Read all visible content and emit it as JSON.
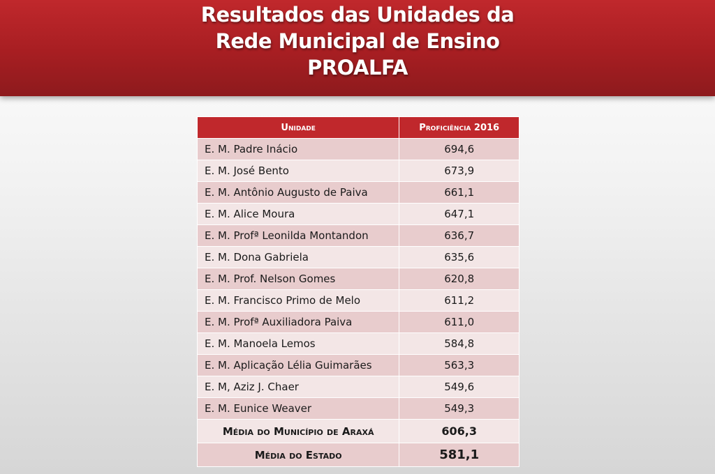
{
  "header": {
    "title_line1": "Resultados das Unidades da",
    "title_line2": "Rede Municipal de Ensino",
    "title_line3": "PROALFA"
  },
  "table": {
    "columns": [
      "Unidade",
      "Proficiência 2016"
    ],
    "rows": [
      {
        "unit": "E. M. Padre Inácio",
        "value": "694,6"
      },
      {
        "unit": "E. M. José Bento",
        "value": "673,9"
      },
      {
        "unit": "E. M. Antônio Augusto de Paiva",
        "value": "661,1"
      },
      {
        "unit": "E. M. Alice Moura",
        "value": "647,1"
      },
      {
        "unit": "E. M. Profª Leonilda Montandon",
        "value": "636,7"
      },
      {
        "unit": "E. M. Dona Gabriela",
        "value": "635,6"
      },
      {
        "unit": "E. M. Prof. Nelson Gomes",
        "value": "620,8"
      },
      {
        "unit": "E. M. Francisco Primo de Melo",
        "value": "611,2"
      },
      {
        "unit": "E. M. Profª Auxiliadora Paiva",
        "value": "611,0"
      },
      {
        "unit": "E. M. Manoela Lemos",
        "value": "584,8"
      },
      {
        "unit": "E. M. Aplicação Lélia Guimarães",
        "value": "563,3"
      },
      {
        "unit": "E. M, Aziz J. Chaer",
        "value": "549,6"
      },
      {
        "unit": "E. M. Eunice Weaver",
        "value": "549,3"
      }
    ],
    "summary": [
      {
        "label": "Média do Município de Araxá",
        "value": "606,3"
      },
      {
        "label": "Média do Estado",
        "value": "581,1"
      }
    ]
  }
}
